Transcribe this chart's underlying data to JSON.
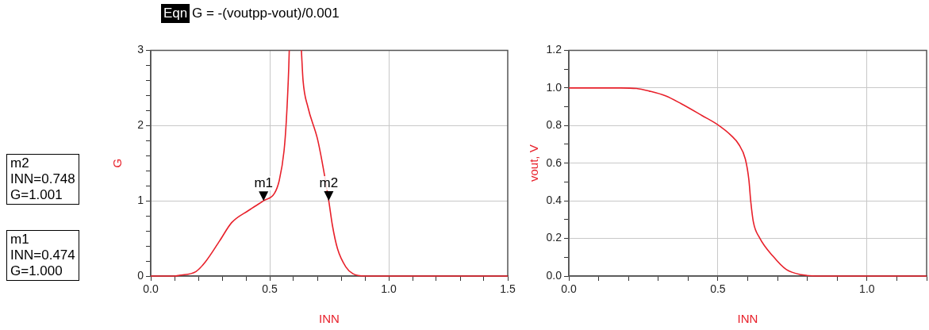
{
  "chart_data": [
    {
      "type": "line",
      "title": "G = -(voutpp-vout)/0.001",
      "xlabel": "INN",
      "ylabel": "G",
      "grid": true,
      "marker": "none",
      "line_style": "solid",
      "xlim": [
        0,
        1.5
      ],
      "ylim": [
        0,
        3
      ],
      "xticks": [
        {
          "value": 0,
          "label": "0.0"
        },
        {
          "value": 0.1,
          "label": null
        },
        {
          "value": 0.2,
          "label": null
        },
        {
          "value": 0.3,
          "label": null
        },
        {
          "value": 0.4,
          "label": null
        },
        {
          "value": 0.5,
          "label": "0.5"
        },
        {
          "value": 0.6,
          "label": null
        },
        {
          "value": 0.7,
          "label": null
        },
        {
          "value": 0.8,
          "label": null
        },
        {
          "value": 0.9,
          "label": null
        },
        {
          "value": 1.0,
          "label": "1.0"
        },
        {
          "value": 1.1,
          "label": null
        },
        {
          "value": 1.2,
          "label": null
        },
        {
          "value": 1.3,
          "label": null
        },
        {
          "value": 1.4,
          "label": null
        },
        {
          "value": 1.5,
          "label": "1.5"
        }
      ],
      "yticks": [
        0,
        {
          "value": 0.2,
          "label": null
        },
        {
          "value": 0.4,
          "label": null
        },
        {
          "value": 0.6,
          "label": null
        },
        {
          "value": 0.8,
          "label": null
        },
        1,
        {
          "value": 1.2,
          "label": null
        },
        {
          "value": 1.4,
          "label": null
        },
        {
          "value": 1.6,
          "label": null
        },
        {
          "value": 1.8,
          "label": null
        },
        2,
        {
          "value": 2.2,
          "label": null
        },
        {
          "value": 2.4,
          "label": null
        },
        {
          "value": 2.6,
          "label": null
        },
        {
          "value": 2.8,
          "label": null
        },
        3
      ],
      "x": [
        0,
        0.1,
        0.12,
        0.19,
        0.23,
        0.29,
        0.34,
        0.41,
        0.474,
        0.52,
        0.54,
        0.56,
        0.57,
        0.58,
        0.582,
        0.61,
        0.633,
        0.64,
        0.66,
        0.7,
        0.72,
        0.748,
        0.763,
        0.785,
        0.82,
        0.85,
        0.9,
        1.0,
        1.5
      ],
      "series": [
        {
          "color": "#e8202a",
          "values": [
            0,
            0,
            0.01,
            0.06,
            0.19,
            0.47,
            0.71,
            0.87,
            1.0,
            1.1,
            1.27,
            1.66,
            2.08,
            2.78,
            3,
            null,
            3,
            2.6,
            2.25,
            1.83,
            1.52,
            1.001,
            0.68,
            0.36,
            0.12,
            0.03,
            0,
            0,
            0
          ]
        }
      ],
      "annotations": [
        "Eqn",
        "m2\nINN=0.748\nG=1.001",
        "m1\nINN=0.474\nG=1.000",
        {
          "text": "m1",
          "x": 0.474,
          "y": 1.0
        },
        {
          "text": "m2",
          "x": 0.748,
          "y": 1.001
        }
      ]
    },
    {
      "type": "line",
      "xlabel": "INN",
      "ylabel": "vout, V",
      "grid": true,
      "marker": "none",
      "line_style": "solid",
      "xlim": [
        0,
        1.2
      ],
      "ylim": [
        0,
        1.2
      ],
      "xticks": [
        {
          "value": 0,
          "label": "0.0"
        },
        {
          "value": 0.1,
          "label": null
        },
        {
          "value": 0.2,
          "label": null
        },
        {
          "value": 0.3,
          "label": null
        },
        {
          "value": 0.4,
          "label": null
        },
        {
          "value": 0.5,
          "label": "0.5"
        },
        {
          "value": 0.6,
          "label": null
        },
        {
          "value": 0.7,
          "label": null
        },
        {
          "value": 0.8,
          "label": null
        },
        {
          "value": 0.9,
          "label": null
        },
        {
          "value": 1.0,
          "label": "1.0"
        },
        {
          "value": 1.1,
          "label": null
        },
        {
          "value": 1.2,
          "label": null
        }
      ],
      "yticks": [
        {
          "value": 0,
          "label": "0.0"
        },
        {
          "value": 0.1,
          "label": null
        },
        {
          "value": 0.2,
          "label": "0.2"
        },
        {
          "value": 0.3,
          "label": null
        },
        {
          "value": 0.4,
          "label": "0.4"
        },
        {
          "value": 0.5,
          "label": null
        },
        {
          "value": 0.6,
          "label": "0.6"
        },
        {
          "value": 0.7,
          "label": null
        },
        {
          "value": 0.8,
          "label": "0.8"
        },
        {
          "value": 0.9,
          "label": null
        },
        {
          "value": 1.0,
          "label": "1.0"
        },
        {
          "value": 1.1,
          "label": null
        },
        {
          "value": 1.2,
          "label": "1.2"
        }
      ],
      "x": [
        0,
        0.174,
        0.227,
        0.27,
        0.324,
        0.377,
        0.447,
        0.5,
        0.544,
        0.57,
        0.592,
        0.604,
        0.61,
        0.619,
        0.64,
        0.685,
        0.729,
        0.78,
        0.843,
        1.2
      ],
      "series": [
        {
          "color": "#e8202a",
          "values": [
            1,
            1,
            0.997,
            0.983,
            0.958,
            0.916,
            0.853,
            0.804,
            0.748,
            0.7,
            0.622,
            0.51,
            0.4,
            0.287,
            0.203,
            0.105,
            0.035,
            0.007,
            0,
            0
          ]
        }
      ]
    }
  ]
}
